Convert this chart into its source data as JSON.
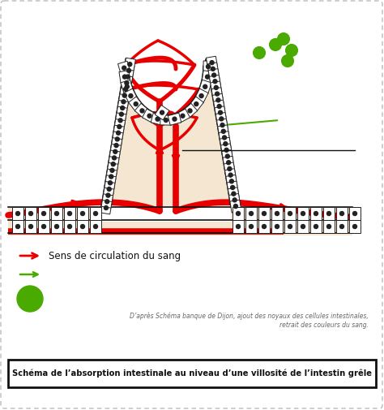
{
  "bg_color": "#ffffff",
  "border_color": "#bbbbbb",
  "skin_color": "#f5e6d2",
  "cell_fill": "#ffffff",
  "cell_edge": "#222222",
  "red": "#e80000",
  "green": "#4aaa00",
  "black": "#111111",
  "gray": "#666666",
  "title": "Schéma de l’absorption intestinale au niveau d’une villosité de l’intestin grêle",
  "credit": "D’après Schéma banque de Dijon, ajout des noyaux des cellules intestinales,\nretrait des couleurs du sang.",
  "legend_blood": "Sens de circulation du sang",
  "figsize": [
    4.74,
    5.05
  ],
  "dpi": 100
}
